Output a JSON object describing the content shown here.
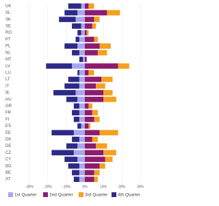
{
  "chart_data": {
    "type": "bar",
    "orientation": "horizontal",
    "stacked": true,
    "categories": [
      "UK",
      "SL",
      "SK",
      "SE",
      "RO",
      "PT",
      "PL",
      "NL",
      "MT",
      "LV",
      "LU",
      "LT",
      "IT",
      "IE",
      "HU",
      "GR",
      "FR",
      "FI",
      "ES",
      "EE",
      "DK",
      "DE",
      "CZ",
      "CY",
      "BG",
      "BE",
      "AT"
    ],
    "series": [
      {
        "name": "1st Quarter",
        "color": "#a9a6f0",
        "values": [
          -2,
          -4,
          -5,
          -2,
          -2,
          -3,
          -4,
          -3,
          -1,
          -7,
          -3,
          -3,
          -3,
          -5,
          -4,
          -3,
          -3,
          -3,
          -2,
          -6,
          -3,
          -4,
          -6,
          -4,
          -3,
          -3,
          -3
        ]
      },
      {
        "name": "2nd Quarter",
        "color": "#8c1c6e",
        "values": [
          2,
          12,
          5,
          4,
          1,
          5,
          8,
          7,
          1,
          18,
          2,
          9,
          6,
          10,
          10,
          2,
          4,
          5,
          2,
          8,
          4,
          6,
          10,
          11,
          8,
          5,
          5
        ]
      },
      {
        "name": "3rd Quarter",
        "color": "#f5a01e",
        "values": [
          3,
          7,
          3,
          2,
          1,
          2,
          6,
          5,
          0,
          6,
          3,
          6,
          5,
          5,
          7,
          2,
          3,
          3,
          1,
          10,
          3,
          6,
          7,
          4,
          3,
          3,
          2
        ]
      },
      {
        "name": "4th Quarter",
        "color": "#2c2a86",
        "values": [
          -7,
          -7,
          -9,
          -5,
          -2,
          -2,
          -7,
          -4,
          -2,
          -14,
          -1,
          -6,
          -8,
          -12,
          -6,
          -3,
          -4,
          -3,
          -2,
          -12,
          -4,
          -6,
          -12,
          -7,
          -6,
          -4,
          -3
        ]
      }
    ],
    "xlim": [
      -30,
      30
    ],
    "xticks": [
      {
        "value": -30,
        "label": "-30%"
      },
      {
        "value": -20,
        "label": "-20%"
      },
      {
        "value": -10,
        "label": "-10%"
      },
      {
        "value": 0,
        "label": "0%"
      },
      {
        "value": 10,
        "label": "10%"
      },
      {
        "value": 20,
        "label": "20%"
      },
      {
        "value": 30,
        "label": "30%"
      }
    ],
    "grid": true,
    "legend": "bottom"
  }
}
